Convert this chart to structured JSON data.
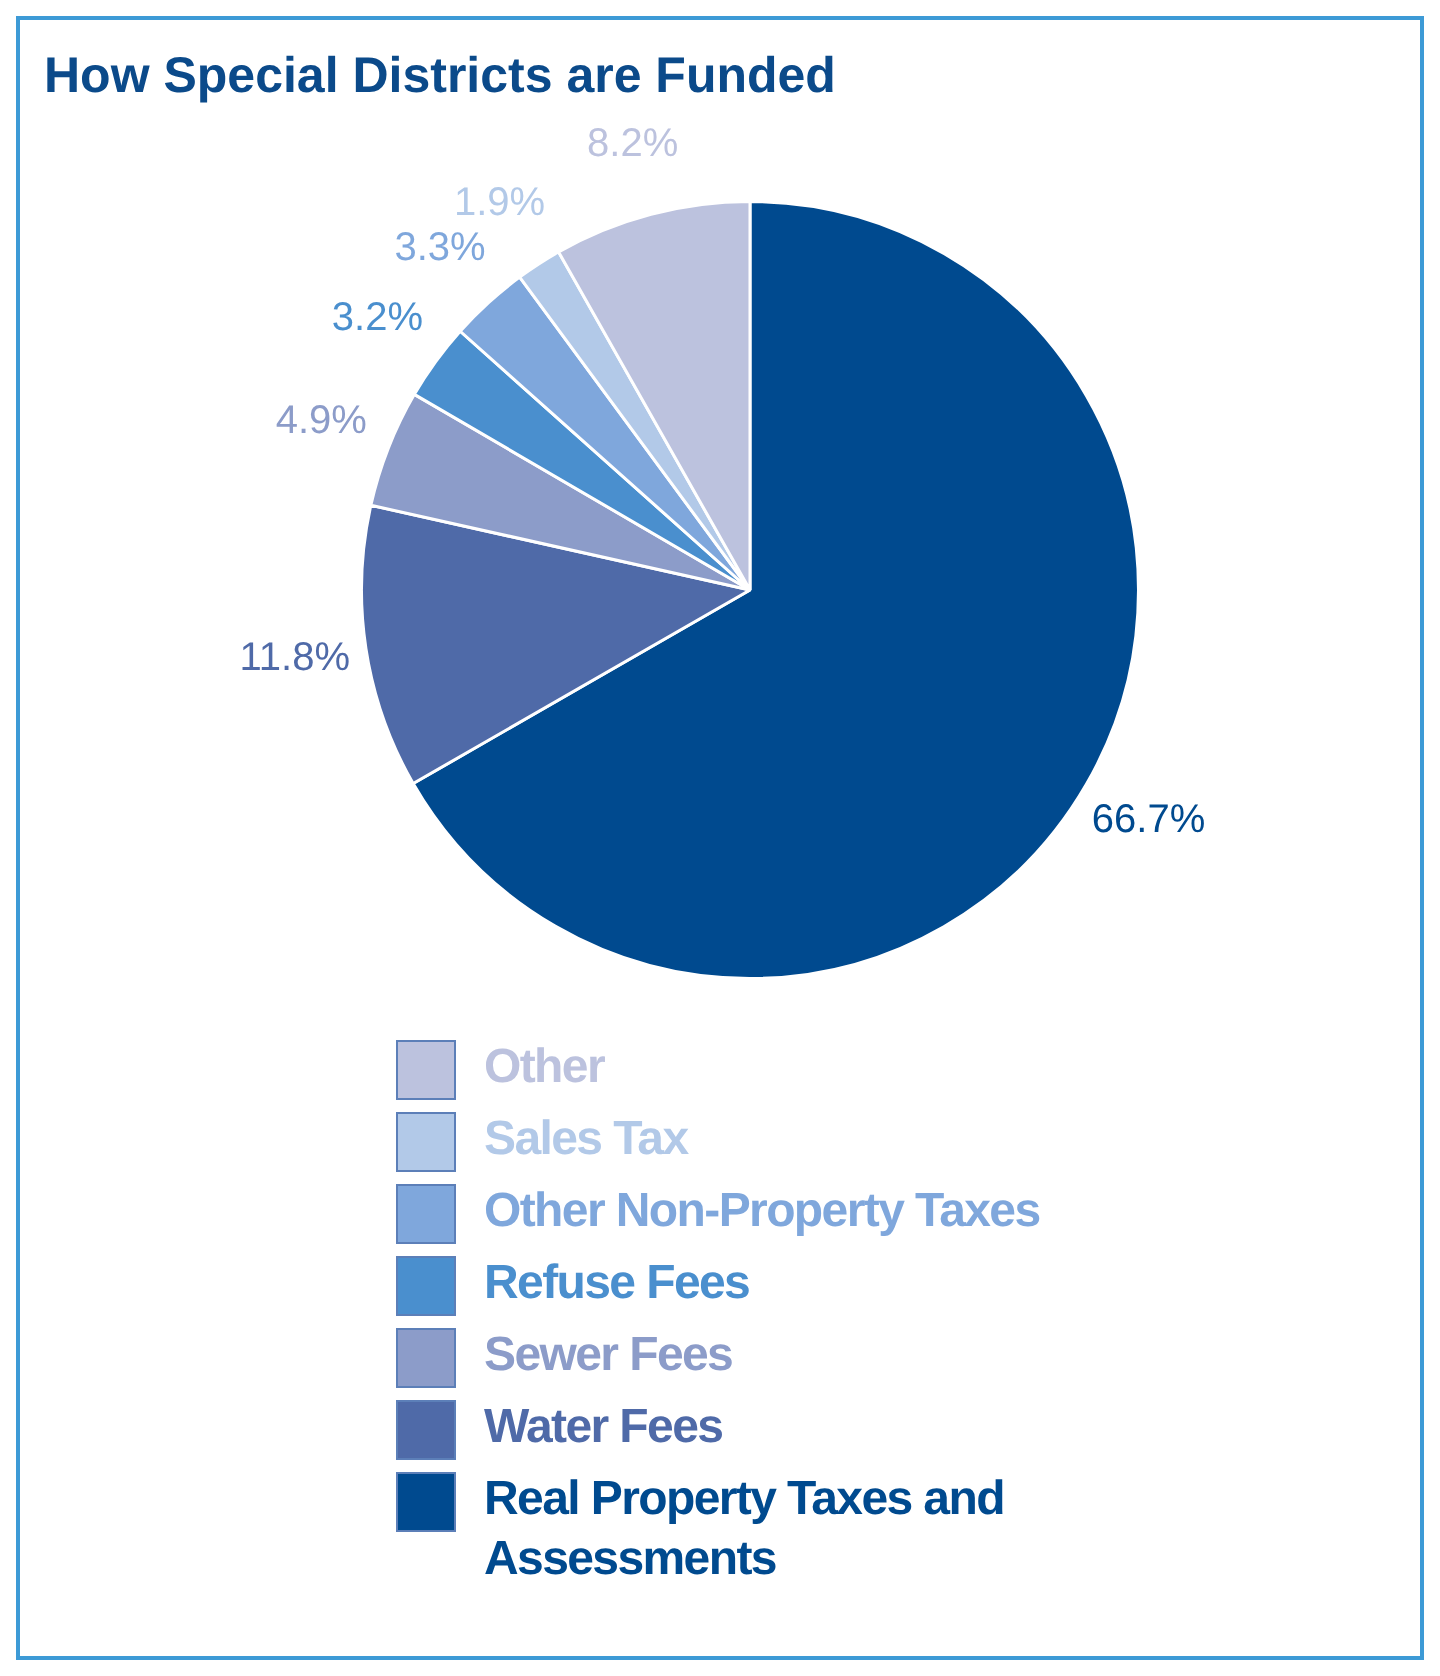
{
  "chart_data": {
    "type": "pie",
    "title": "How Special Districts are Funded",
    "categories": [
      "Real Property Taxes and Assessments",
      "Water Fees",
      "Sewer Fees",
      "Refuse Fees",
      "Other Non-Property Taxes",
      "Sales Tax",
      "Other"
    ],
    "values": [
      66.7,
      11.8,
      4.9,
      3.2,
      3.3,
      1.9,
      8.2
    ],
    "colors": [
      "#004a8f",
      "#4f6aa8",
      "#8c9cc9",
      "#4a8fce",
      "#7fa7dc",
      "#b2c9e8",
      "#bcc2de"
    ],
    "value_labels": [
      "66.7%",
      "11.8%",
      "4.9%",
      "3.2%",
      "3.3%",
      "1.9%",
      "8.2%"
    ],
    "legend": "bottom"
  }
}
